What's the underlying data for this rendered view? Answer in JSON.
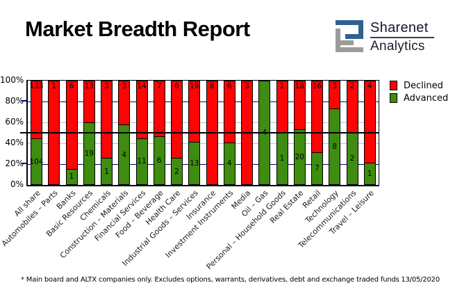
{
  "header": {
    "title": "Market Breadth Report",
    "logo": {
      "line1": "Sharenet",
      "line2": "Analytics",
      "icon_blue": "#2f6191",
      "icon_gray": "#9b9b9b"
    }
  },
  "chart_data": {
    "type": "bar",
    "stacked_percent": true,
    "categories": [
      "All share",
      "Automobiles – Parts",
      "Banks",
      "Basic Resources",
      "Chemicals",
      "Construction – Materials",
      "Financial Services",
      "Food – Beverage",
      "Health Care",
      "Industrial Goods – Services",
      "Insurance",
      "Investment Instruments",
      "Media",
      "Oil – Gas",
      "Personal – Household Goods",
      "Real Estate",
      "Retail",
      "Technology",
      "Telecommunications",
      "Travel – Leisure"
    ],
    "series": [
      {
        "name": "Declined",
        "color": "#fb0505",
        "values": [
          133,
          1,
          6,
          13,
          3,
          3,
          14,
          7,
          6,
          19,
          8,
          6,
          3,
          0,
          1,
          18,
          16,
          3,
          2,
          4
        ]
      },
      {
        "name": "Advanced",
        "color": "#3e8c10",
        "values": [
          104,
          0,
          1,
          19,
          1,
          4,
          11,
          6,
          2,
          13,
          0,
          4,
          0,
          4,
          1,
          20,
          7,
          8,
          2,
          1
        ]
      }
    ],
    "ylim": [
      0,
      100
    ],
    "ytick_labels": [
      "100%",
      "80%",
      "60%",
      "40%",
      "20%",
      "0%"
    ],
    "grid": "on",
    "reference_line_pct": 50,
    "legend_position": "right"
  },
  "legend": {
    "items": [
      {
        "label": "Declined",
        "color": "#fb0505"
      },
      {
        "label": "Advanced",
        "color": "#3e8c10"
      }
    ]
  },
  "footer": {
    "note": "* Main board and ALTX companies only. Excludes options, warrants, derivatives, debt and exchange traded funds",
    "date": "13/05/2020"
  },
  "colors": {
    "declined": "#fb0505",
    "advanced": "#3e8c10",
    "grid_navy": "#000080",
    "grid_gray": "#bdbdbd",
    "reference_line": "#000000"
  }
}
